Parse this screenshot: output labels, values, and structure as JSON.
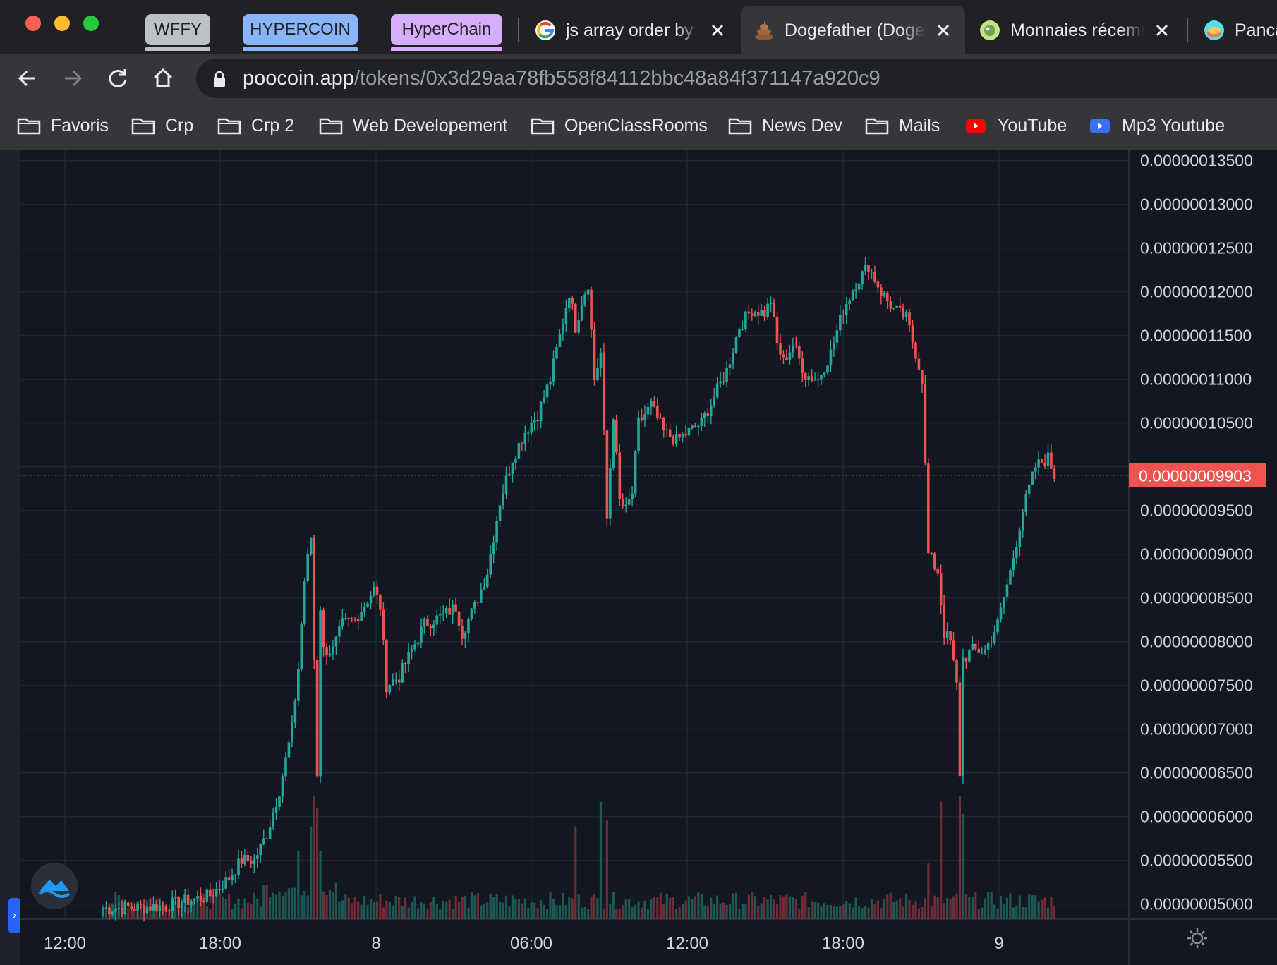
{
  "window": {
    "tab_groups": [
      {
        "label": "WFFY",
        "color": "#bdc1c6"
      },
      {
        "label": "HYPERCOIN",
        "color": "#8ab4f8"
      },
      {
        "label": "HyperChain",
        "color": "#d7aefb"
      }
    ],
    "tabs": [
      {
        "title": "js array order by",
        "icon": "google-icon",
        "active": false
      },
      {
        "title": "Dogefather (Doge",
        "icon": "poop-icon",
        "active": true
      },
      {
        "title": "Monnaies récemment",
        "icon": "coin-icon",
        "active": false
      },
      {
        "title": "Pancake",
        "icon": "pancake-icon",
        "active": false
      }
    ]
  },
  "toolbar": {
    "url_host": "poocoin.app",
    "url_path": "/tokens/0x3d29aa78fb558f84112bbc48a84f371147a920c9"
  },
  "bookmarks": [
    {
      "label": "Favoris",
      "icon": "folder-icon"
    },
    {
      "label": "Crp",
      "icon": "folder-icon"
    },
    {
      "label": "Crp 2",
      "icon": "folder-icon"
    },
    {
      "label": "Web Developement",
      "icon": "folder-icon"
    },
    {
      "label": "OpenClassRooms",
      "icon": "folder-icon"
    },
    {
      "label": "News Dev",
      "icon": "folder-icon"
    },
    {
      "label": "Mails",
      "icon": "folder-icon"
    },
    {
      "label": "YouTube",
      "icon": "youtube-icon"
    },
    {
      "label": "Mp3 Youtube",
      "icon": "video-icon"
    }
  ],
  "colors": {
    "up": "#26a69a",
    "down": "#ef5350",
    "background": "#131722",
    "grid": "#1f2533",
    "axis_text": "#d1d4dc"
  },
  "chart_data": {
    "type": "candlestick",
    "y_ticks": [
      "0.00000013500",
      "0.00000013000",
      "0.00000012500",
      "0.00000012000",
      "0.00000011500",
      "0.00000011000",
      "0.00000010500",
      "0.00000010000",
      "0.00000009500",
      "0.00000009000",
      "0.00000008500",
      "0.00000008000",
      "0.00000007500",
      "0.00000007000",
      "0.00000006500",
      "0.00000006000",
      "0.00000005500",
      "0.00000005000"
    ],
    "x_ticks": [
      "12:00",
      "18:00",
      "8",
      "06:00",
      "12:00",
      "18:00",
      "9"
    ],
    "ylim": [
      4.8e-08,
      1.368e-07
    ],
    "last_price": "0.00000009903",
    "last_price_value": 9.903e-08,
    "close_path": [
      [
        0,
        4.95e-08
      ],
      [
        10,
        4.96e-08
      ],
      [
        20,
        4.98e-08
      ],
      [
        34,
        5.1e-08
      ],
      [
        40,
        5.3e-08
      ],
      [
        44,
        5.5e-08
      ],
      [
        48,
        5.5e-08
      ],
      [
        52,
        5.8e-08
      ],
      [
        56,
        6.3e-08
      ],
      [
        60,
        7e-08
      ],
      [
        62,
        7.7e-08
      ],
      [
        64,
        8.7e-08
      ],
      [
        66,
        9.2e-08
      ],
      [
        67,
        7.8e-08
      ],
      [
        68,
        6.5e-08
      ],
      [
        69,
        8.4e-08
      ],
      [
        70,
        7.9e-08
      ],
      [
        73,
        7.9e-08
      ],
      [
        76,
        8.2e-08
      ],
      [
        80,
        8.25e-08
      ],
      [
        86,
        8.6e-08
      ],
      [
        88,
        8.4e-08
      ],
      [
        90,
        7.5e-08
      ],
      [
        94,
        7.6e-08
      ],
      [
        98,
        7.9e-08
      ],
      [
        102,
        8.2e-08
      ],
      [
        108,
        8.3e-08
      ],
      [
        112,
        8.4e-08
      ],
      [
        114,
        8.1e-08
      ],
      [
        118,
        8.4e-08
      ],
      [
        122,
        8.8e-08
      ],
      [
        126,
        9.6e-08
      ],
      [
        130,
        1.01e-07
      ],
      [
        134,
        1.04e-07
      ],
      [
        138,
        1.06e-07
      ],
      [
        142,
        1.1e-07
      ],
      [
        145,
        1.15e-07
      ],
      [
        148,
        1.2e-07
      ],
      [
        150,
        1.16e-07
      ],
      [
        152,
        1.19e-07
      ],
      [
        154,
        1.21e-07
      ],
      [
        156,
        1.1e-07
      ],
      [
        158,
        1.13e-07
      ],
      [
        160,
        9.4e-08
      ],
      [
        162,
        1.06e-07
      ],
      [
        164,
        9.6e-08
      ],
      [
        166,
        9.5e-08
      ],
      [
        168,
        9.7e-08
      ],
      [
        170,
        1.05e-07
      ],
      [
        174,
        1.07e-07
      ],
      [
        178,
        1.04e-07
      ],
      [
        182,
        1.03e-07
      ],
      [
        186,
        1.04e-07
      ],
      [
        190,
        1.05e-07
      ],
      [
        194,
        1.08e-07
      ],
      [
        198,
        1.11e-07
      ],
      [
        202,
        1.16e-07
      ],
      [
        206,
        1.18e-07
      ],
      [
        210,
        1.175e-07
      ],
      [
        212,
        1.19e-07
      ],
      [
        214,
        1.14e-07
      ],
      [
        216,
        1.12e-07
      ],
      [
        219,
        1.14e-07
      ],
      [
        223,
        1.105e-07
      ],
      [
        227,
        1.1e-07
      ],
      [
        231,
        1.13e-07
      ],
      [
        235,
        1.18e-07
      ],
      [
        239,
        1.21e-07
      ],
      [
        243,
        1.23e-07
      ],
      [
        247,
        1.2e-07
      ],
      [
        251,
        1.18e-07
      ],
      [
        255,
        1.17e-07
      ],
      [
        258,
        1.13e-07
      ],
      [
        260,
        1.1e-07
      ],
      [
        262,
        9e-08
      ],
      [
        265,
        8.8e-08
      ],
      [
        267,
        8.1e-08
      ],
      [
        269,
        8e-08
      ],
      [
        271,
        7.5e-08
      ],
      [
        272,
        6.5e-08
      ],
      [
        273,
        7.8e-08
      ],
      [
        276,
        7.9e-08
      ],
      [
        280,
        7.9e-08
      ],
      [
        284,
        8.2e-08
      ],
      [
        288,
        8.8e-08
      ],
      [
        292,
        9.5e-08
      ],
      [
        296,
        1e-07
      ],
      [
        300,
        1.01e-07
      ],
      [
        302,
        9.9e-08
      ]
    ],
    "candle_count": 303,
    "volume_spikes": [
      [
        62,
        0.55
      ],
      [
        66,
        0.75
      ],
      [
        67,
        1.0
      ],
      [
        68,
        0.9
      ],
      [
        69,
        0.55
      ],
      [
        150,
        0.75
      ],
      [
        158,
        0.95
      ],
      [
        160,
        0.8
      ],
      [
        262,
        0.45
      ],
      [
        266,
        0.95
      ],
      [
        272,
        1.0
      ],
      [
        273,
        0.85
      ]
    ]
  }
}
